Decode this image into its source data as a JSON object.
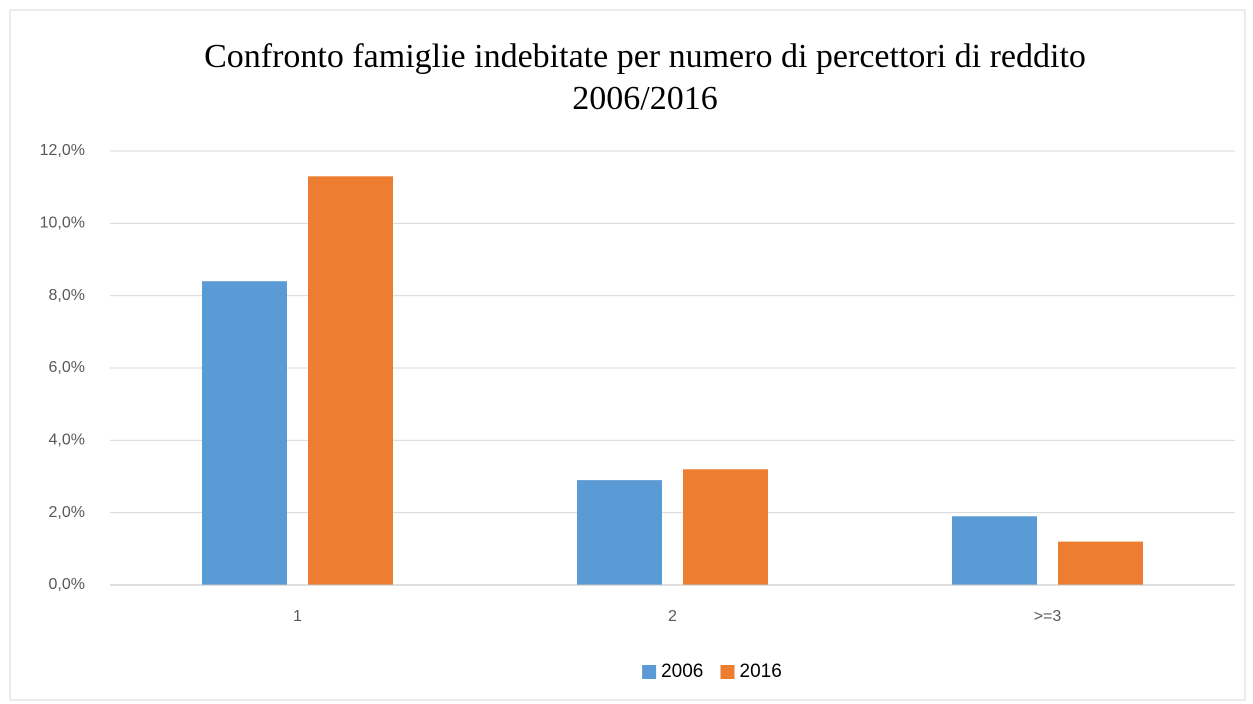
{
  "chart_data": {
    "type": "bar",
    "title": "Confronto famiglie indebitate per numero di percettori di reddito 2006/2016",
    "categories": [
      "1",
      "2",
      ">=3"
    ],
    "series": [
      {
        "name": "2006",
        "color": "#5b9bd5",
        "values": [
          8.4,
          2.9,
          1.9
        ]
      },
      {
        "name": "2016",
        "color": "#ed7d31",
        "values": [
          11.3,
          3.2,
          1.2
        ]
      }
    ],
    "ylim": [
      0,
      12
    ],
    "yticks": [
      {
        "value": 0,
        "label": "0,0%"
      },
      {
        "value": 2,
        "label": "2,0%"
      },
      {
        "value": 4,
        "label": "4,0%"
      },
      {
        "value": 6,
        "label": "6,0%"
      },
      {
        "value": 8,
        "label": "8,0%"
      },
      {
        "value": 10,
        "label": "10,0%"
      },
      {
        "value": 12,
        "label": "12,0%"
      }
    ],
    "grid": true,
    "legend": "bottom"
  }
}
